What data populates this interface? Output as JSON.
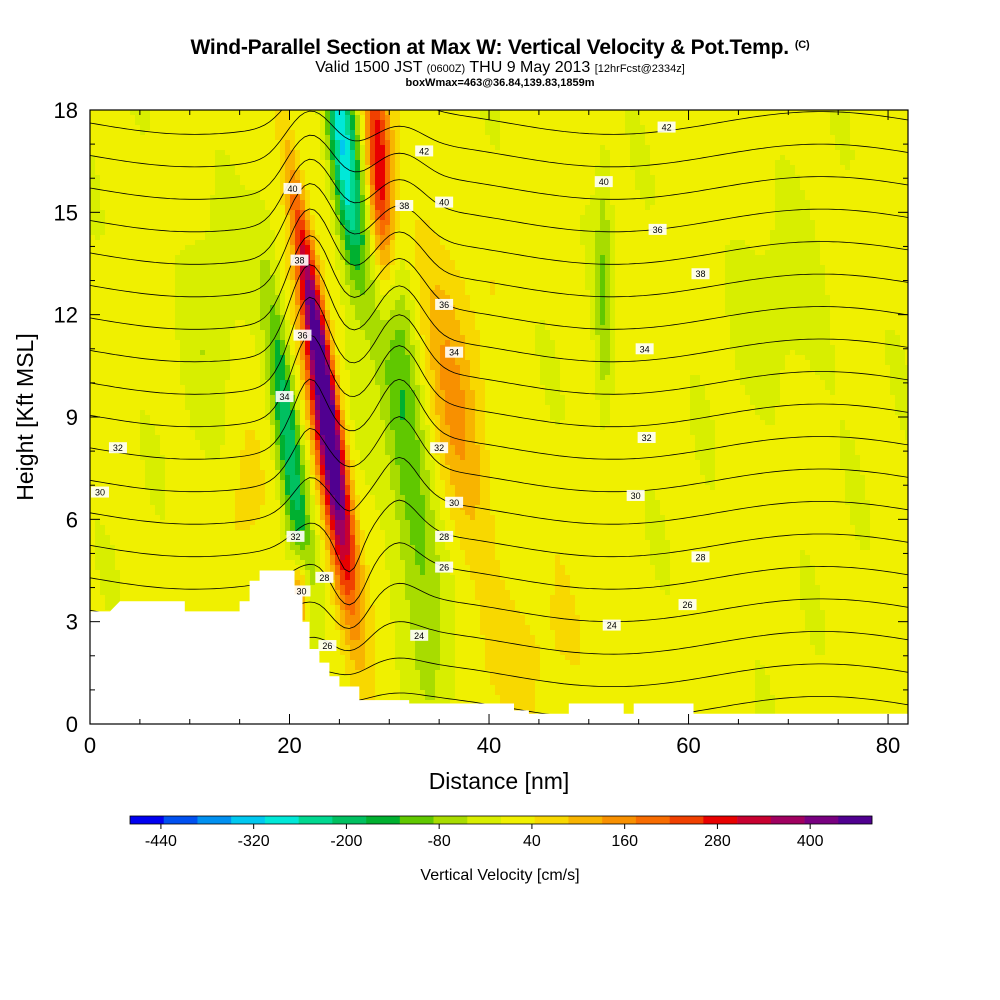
{
  "chart_data": {
    "type": "heatmap",
    "title": "Wind-Parallel Section at Max W: Vertical Velocity & Pot.Temp.",
    "title_mark": "(C)",
    "subtitle_main": "Valid 1500 JST",
    "subtitle_utc": "(0600Z)",
    "subtitle_date": "THU 9 May 2013",
    "subtitle_run": "[12hrFcst@2334z]",
    "subtitle_box": "boxWmax=463@36.84,139.83,1859m",
    "xlabel": "Distance [nm]",
    "ylabel": "Height [Kft MSL]",
    "xlim": [
      0,
      82
    ],
    "ylim": [
      0,
      18
    ],
    "xticks": [
      0,
      20,
      40,
      60,
      80
    ],
    "yticks": [
      0,
      3,
      6,
      9,
      12,
      15,
      18
    ],
    "colorbar": {
      "label": "Vertical Velocity [cm/s]",
      "min": -480,
      "max": 480,
      "tick_labels": [
        "-440",
        "-320",
        "-200",
        "-80",
        "40",
        "160",
        "280",
        "400"
      ],
      "tick_values": [
        -440,
        -320,
        -200,
        -80,
        40,
        160,
        280,
        400
      ],
      "colors": [
        "#0000f0",
        "#0050f0",
        "#0090f0",
        "#00c8f0",
        "#00e8d8",
        "#00d890",
        "#00c060",
        "#00b030",
        "#60c800",
        "#a8dc00",
        "#d8ee00",
        "#f0f000",
        "#f8d800",
        "#f8b400",
        "#f89000",
        "#f86c00",
        "#f04000",
        "#e80000",
        "#c80030",
        "#a00060",
        "#780080",
        "#500090"
      ]
    },
    "terrain": [
      [
        0,
        3.3
      ],
      [
        2,
        3.3
      ],
      [
        3,
        3.6
      ],
      [
        9.5,
        3.6
      ],
      [
        9.5,
        3.3
      ],
      [
        15,
        3.3
      ],
      [
        15,
        3.6
      ],
      [
        16,
        3.6
      ],
      [
        16,
        4.2
      ],
      [
        17,
        4.2
      ],
      [
        17,
        4.5
      ],
      [
        20.5,
        4.5
      ],
      [
        20.5,
        3.8
      ],
      [
        21.3,
        3.8
      ],
      [
        21.3,
        3
      ],
      [
        22,
        3
      ],
      [
        22,
        2.2
      ],
      [
        23,
        2.2
      ],
      [
        23,
        1.8
      ],
      [
        24,
        1.8
      ],
      [
        24,
        1.4
      ],
      [
        25,
        1.4
      ],
      [
        25,
        1.1
      ],
      [
        27,
        1.1
      ],
      [
        27,
        0.7
      ],
      [
        32,
        0.7
      ],
      [
        32,
        0.6
      ],
      [
        42.5,
        0.6
      ],
      [
        42.5,
        0.4
      ],
      [
        44,
        0.4
      ],
      [
        44,
        0.3
      ],
      [
        48,
        0.3
      ],
      [
        48,
        0.6
      ],
      [
        53.5,
        0.6
      ],
      [
        53.5,
        0.3
      ],
      [
        54.5,
        0.3
      ],
      [
        54.5,
        0.6
      ],
      [
        60.5,
        0.6
      ],
      [
        60.5,
        0.3
      ],
      [
        82,
        0.3
      ]
    ],
    "w_features": [
      {
        "x": 24,
        "y": 8,
        "sx": 0.95,
        "sy": 3.2,
        "slope": -0.45,
        "w": 430
      },
      {
        "x": 22.5,
        "y": 12,
        "sx": 0.7,
        "sy": 3.5,
        "slope": -0.55,
        "w": 260
      },
      {
        "x": 29,
        "y": 16,
        "sx": 0.9,
        "sy": 2.5,
        "slope": -0.2,
        "w": 330
      },
      {
        "x": 25.5,
        "y": 16.5,
        "sx": 1.0,
        "sy": 2.5,
        "slope": -0.35,
        "w": -320
      },
      {
        "x": 19.8,
        "y": 8.5,
        "sx": 0.9,
        "sy": 3.2,
        "slope": -0.4,
        "w": -220
      },
      {
        "x": 31.5,
        "y": 8.5,
        "sx": 1.6,
        "sy": 5.5,
        "slope": -0.42,
        "w": -160
      },
      {
        "x": 21,
        "y": 3.8,
        "sx": 0.6,
        "sy": 0.8,
        "slope": 0,
        "w": 180
      },
      {
        "x": 36.5,
        "y": 9.5,
        "sx": 2.0,
        "sy": 3.5,
        "slope": -0.4,
        "w": 110
      },
      {
        "x": 51.5,
        "y": 12.5,
        "sx": 0.6,
        "sy": 3.0,
        "slope": 0,
        "w": -95
      },
      {
        "x": 44,
        "y": 2,
        "sx": 5.0,
        "sy": 1.3,
        "slope": 0,
        "w": 30
      },
      {
        "x": 12,
        "y": 12,
        "sx": 2.0,
        "sy": 3.0,
        "slope": 0,
        "w": -45
      },
      {
        "x": 70,
        "y": 12,
        "sx": 4.0,
        "sy": 2.0,
        "slope": 0,
        "w": -40
      },
      {
        "x": 15,
        "y": 6,
        "sx": 1.5,
        "sy": 1.5,
        "slope": 0,
        "w": 35
      }
    ],
    "theta_contours": [
      24,
      25,
      26,
      27,
      28,
      29,
      30,
      31,
      32,
      33,
      34,
      35,
      36,
      37,
      38,
      39,
      40,
      41,
      42,
      43,
      44,
      45
    ],
    "theta_labels": [
      {
        "text": "32",
        "x": 2.8,
        "y": 8.1
      },
      {
        "text": "30",
        "x": 1.0,
        "y": 6.8
      },
      {
        "text": "34",
        "x": 19.5,
        "y": 9.6
      },
      {
        "text": "36",
        "x": 21.3,
        "y": 11.4
      },
      {
        "text": "38",
        "x": 21.0,
        "y": 13.6
      },
      {
        "text": "40",
        "x": 20.3,
        "y": 15.7
      },
      {
        "text": "32",
        "x": 20.6,
        "y": 5.5
      },
      {
        "text": "30",
        "x": 21.2,
        "y": 3.9
      },
      {
        "text": "28",
        "x": 23.5,
        "y": 4.3
      },
      {
        "text": "26",
        "x": 23.8,
        "y": 2.3
      },
      {
        "text": "24",
        "x": 33.0,
        "y": 2.6
      },
      {
        "text": "42",
        "x": 33.5,
        "y": 16.8
      },
      {
        "text": "38",
        "x": 31.5,
        "y": 15.2
      },
      {
        "text": "40",
        "x": 35.5,
        "y": 15.3
      },
      {
        "text": "36",
        "x": 35.5,
        "y": 12.3
      },
      {
        "text": "34",
        "x": 36.5,
        "y": 10.9
      },
      {
        "text": "32",
        "x": 35.0,
        "y": 8.1
      },
      {
        "text": "30",
        "x": 36.5,
        "y": 6.5
      },
      {
        "text": "28",
        "x": 35.5,
        "y": 5.5
      },
      {
        "text": "26",
        "x": 35.5,
        "y": 4.6
      },
      {
        "text": "42",
        "x": 57.8,
        "y": 17.5
      },
      {
        "text": "40",
        "x": 51.5,
        "y": 15.9
      },
      {
        "text": "36",
        "x": 56.9,
        "y": 14.5
      },
      {
        "text": "38",
        "x": 61.2,
        "y": 13.2
      },
      {
        "text": "34",
        "x": 55.6,
        "y": 11.0
      },
      {
        "text": "32",
        "x": 55.8,
        "y": 8.4
      },
      {
        "text": "30",
        "x": 54.7,
        "y": 6.7
      },
      {
        "text": "28",
        "x": 61.2,
        "y": 4.9
      },
      {
        "text": "26",
        "x": 59.9,
        "y": 3.5
      },
      {
        "text": "24",
        "x": 52.3,
        "y": 2.9
      }
    ]
  }
}
